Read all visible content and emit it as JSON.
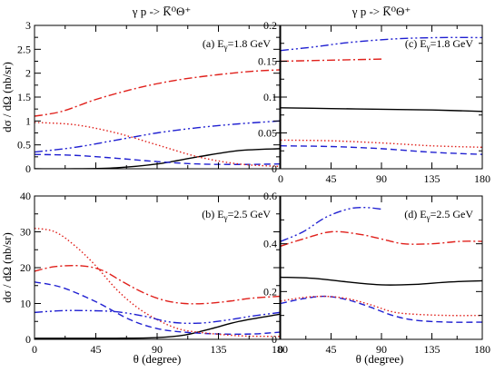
{
  "figure": {
    "left_title": "γ p -> K̅⁰Θ⁺",
    "right_title": "γ p -> K̅⁰Θ⁺",
    "ylabel_left": "dσ / dΩ  (nb/sr)",
    "xlabel": "θ  (degree)"
  },
  "styles": [
    {
      "name": "solid",
      "color": "#000000",
      "dash": ""
    },
    {
      "name": "dashed",
      "color": "#1f1fd1",
      "dash": "7,4"
    },
    {
      "name": "dotted",
      "color": "#e0201b",
      "dash": "1.5,2.5"
    },
    {
      "name": "dash-dot",
      "color": "#e0201b",
      "dash": "9,3,2,3"
    },
    {
      "name": "dash-dot-dot",
      "color": "#1f1fd1",
      "dash": "9,3,2,3,2,3"
    }
  ],
  "chart_data": [
    {
      "type": "line",
      "panel": "top-left",
      "label": "(a) E",
      "label_sub": "γ",
      "label_rest": "=1.8 GeV",
      "xlim": [
        0,
        180
      ],
      "ylim": [
        0,
        3
      ],
      "xticks": [
        0,
        45,
        90,
        135,
        180
      ],
      "yticks": [
        0,
        0.5,
        1,
        1.5,
        2,
        2.5,
        3
      ],
      "ytick_labels": [
        "0",
        "0.5",
        "1",
        "1.5",
        "2",
        "2.5",
        "3"
      ],
      "show_xtick_labels": false,
      "series": [
        {
          "style": 0,
          "x": [
            0,
            30,
            60,
            90,
            120,
            150,
            180
          ],
          "values": [
            0.0,
            0.0,
            0.02,
            0.1,
            0.25,
            0.38,
            0.42
          ]
        },
        {
          "style": 1,
          "x": [
            0,
            30,
            60,
            90,
            120,
            150,
            180
          ],
          "values": [
            0.3,
            0.28,
            0.22,
            0.15,
            0.1,
            0.09,
            0.1
          ]
        },
        {
          "style": 2,
          "x": [
            0,
            30,
            60,
            90,
            120,
            150,
            180
          ],
          "values": [
            0.97,
            0.92,
            0.75,
            0.5,
            0.25,
            0.1,
            0.05
          ]
        },
        {
          "style": 3,
          "x": [
            0,
            20,
            45,
            70,
            90,
            110,
            135,
            160,
            180
          ],
          "values": [
            1.1,
            1.2,
            1.45,
            1.65,
            1.78,
            1.88,
            1.97,
            2.04,
            2.07
          ]
        },
        {
          "style": 4,
          "x": [
            0,
            30,
            60,
            90,
            120,
            150,
            180
          ],
          "values": [
            0.35,
            0.45,
            0.6,
            0.75,
            0.86,
            0.94,
            1.0
          ]
        }
      ]
    },
    {
      "type": "line",
      "panel": "top-right",
      "label": "(c) E",
      "label_sub": "γ",
      "label_rest": "=1.8 GeV",
      "xlim": [
        0,
        180
      ],
      "ylim": [
        0,
        0.2
      ],
      "xticks": [
        0,
        45,
        90,
        135,
        180
      ],
      "yticks": [
        0,
        0.05,
        0.1,
        0.15,
        0.2
      ],
      "ytick_labels": [
        "0",
        "0.05",
        "0.1",
        "0.15",
        "0.2"
      ],
      "show_xtick_labels": true,
      "series": [
        {
          "style": 0,
          "x": [
            0,
            45,
            90,
            135,
            180
          ],
          "values": [
            0.085,
            0.084,
            0.083,
            0.082,
            0.08
          ]
        },
        {
          "style": 1,
          "x": [
            0,
            45,
            90,
            135,
            180
          ],
          "values": [
            0.032,
            0.031,
            0.028,
            0.023,
            0.02
          ]
        },
        {
          "style": 2,
          "x": [
            0,
            45,
            90,
            135,
            180
          ],
          "values": [
            0.04,
            0.039,
            0.036,
            0.032,
            0.03
          ]
        },
        {
          "style": 3,
          "x": [
            0,
            30,
            60,
            90
          ],
          "values": [
            0.15,
            0.151,
            0.152,
            0.153
          ]
        },
        {
          "style": 4,
          "x": [
            0,
            30,
            60,
            100,
            140,
            180
          ],
          "values": [
            0.165,
            0.17,
            0.176,
            0.181,
            0.183,
            0.183
          ]
        }
      ]
    },
    {
      "type": "line",
      "panel": "bottom-left",
      "label": "(b) E",
      "label_sub": "γ",
      "label_rest": "=2.5 GeV",
      "xlim": [
        0,
        180
      ],
      "ylim": [
        0,
        40
      ],
      "xticks": [
        0,
        45,
        90,
        135,
        180
      ],
      "yticks": [
        0,
        10,
        20,
        30,
        40
      ],
      "ytick_labels": [
        "0",
        "10",
        "20",
        "30",
        "40"
      ],
      "show_xtick_labels": true,
      "series": [
        {
          "style": 0,
          "x": [
            0,
            30,
            60,
            90,
            110,
            130,
            150,
            180
          ],
          "values": [
            0.3,
            0.3,
            0.3,
            0.5,
            1.2,
            3.0,
            5.0,
            7.0
          ]
        },
        {
          "style": 1,
          "x": [
            0,
            20,
            45,
            70,
            90,
            110,
            135,
            160,
            180
          ],
          "values": [
            16.0,
            14.5,
            10.5,
            5.5,
            3.0,
            2.0,
            1.5,
            1.5,
            2.0
          ]
        },
        {
          "style": 2,
          "x": [
            0,
            15,
            30,
            45,
            60,
            75,
            90,
            105,
            120,
            150,
            180
          ],
          "values": [
            31.0,
            30.0,
            26.0,
            20.5,
            14.0,
            9.0,
            5.5,
            3.0,
            2.0,
            1.0,
            0.8
          ]
        },
        {
          "style": 3,
          "x": [
            0,
            15,
            35,
            50,
            65,
            80,
            95,
            110,
            125,
            140,
            160,
            180
          ],
          "values": [
            19.0,
            20.3,
            20.5,
            19.2,
            16.0,
            13.0,
            10.9,
            10.0,
            10.0,
            10.5,
            11.5,
            12.0
          ]
        },
        {
          "style": 4,
          "x": [
            0,
            20,
            40,
            60,
            80,
            100,
            120,
            140,
            160,
            180
          ],
          "values": [
            7.5,
            8.0,
            8.0,
            7.7,
            6.5,
            4.8,
            4.5,
            5.3,
            6.5,
            7.5
          ]
        }
      ]
    },
    {
      "type": "line",
      "panel": "bottom-right",
      "label": "(d) E",
      "label_sub": "γ",
      "label_rest": "=2.5 GeV",
      "xlim": [
        0,
        180
      ],
      "ylim": [
        0,
        0.6
      ],
      "xticks": [
        0,
        45,
        90,
        135,
        180
      ],
      "yticks": [
        0,
        0.2,
        0.4,
        0.6
      ],
      "ytick_labels": [
        "0",
        "0.2",
        "0.4",
        "0.6"
      ],
      "show_xtick_labels": true,
      "series": [
        {
          "style": 0,
          "x": [
            0,
            30,
            60,
            90,
            120,
            150,
            180
          ],
          "values": [
            0.26,
            0.255,
            0.24,
            0.228,
            0.23,
            0.24,
            0.245
          ]
        },
        {
          "style": 1,
          "x": [
            0,
            20,
            40,
            60,
            80,
            100,
            120,
            150,
            180
          ],
          "values": [
            0.15,
            0.17,
            0.18,
            0.165,
            0.135,
            0.1,
            0.08,
            0.072,
            0.072
          ]
        },
        {
          "style": 2,
          "x": [
            0,
            20,
            40,
            60,
            80,
            100,
            120,
            150,
            180
          ],
          "values": [
            0.16,
            0.175,
            0.18,
            0.17,
            0.145,
            0.115,
            0.105,
            0.1,
            0.1
          ]
        },
        {
          "style": 3,
          "x": [
            0,
            20,
            45,
            70,
            90,
            110,
            135,
            160,
            180
          ],
          "values": [
            0.39,
            0.42,
            0.45,
            0.44,
            0.42,
            0.4,
            0.4,
            0.41,
            0.41
          ]
        },
        {
          "style": 4,
          "x": [
            0,
            20,
            40,
            60,
            75,
            90
          ],
          "values": [
            0.41,
            0.45,
            0.51,
            0.545,
            0.552,
            0.545
          ]
        }
      ]
    }
  ]
}
